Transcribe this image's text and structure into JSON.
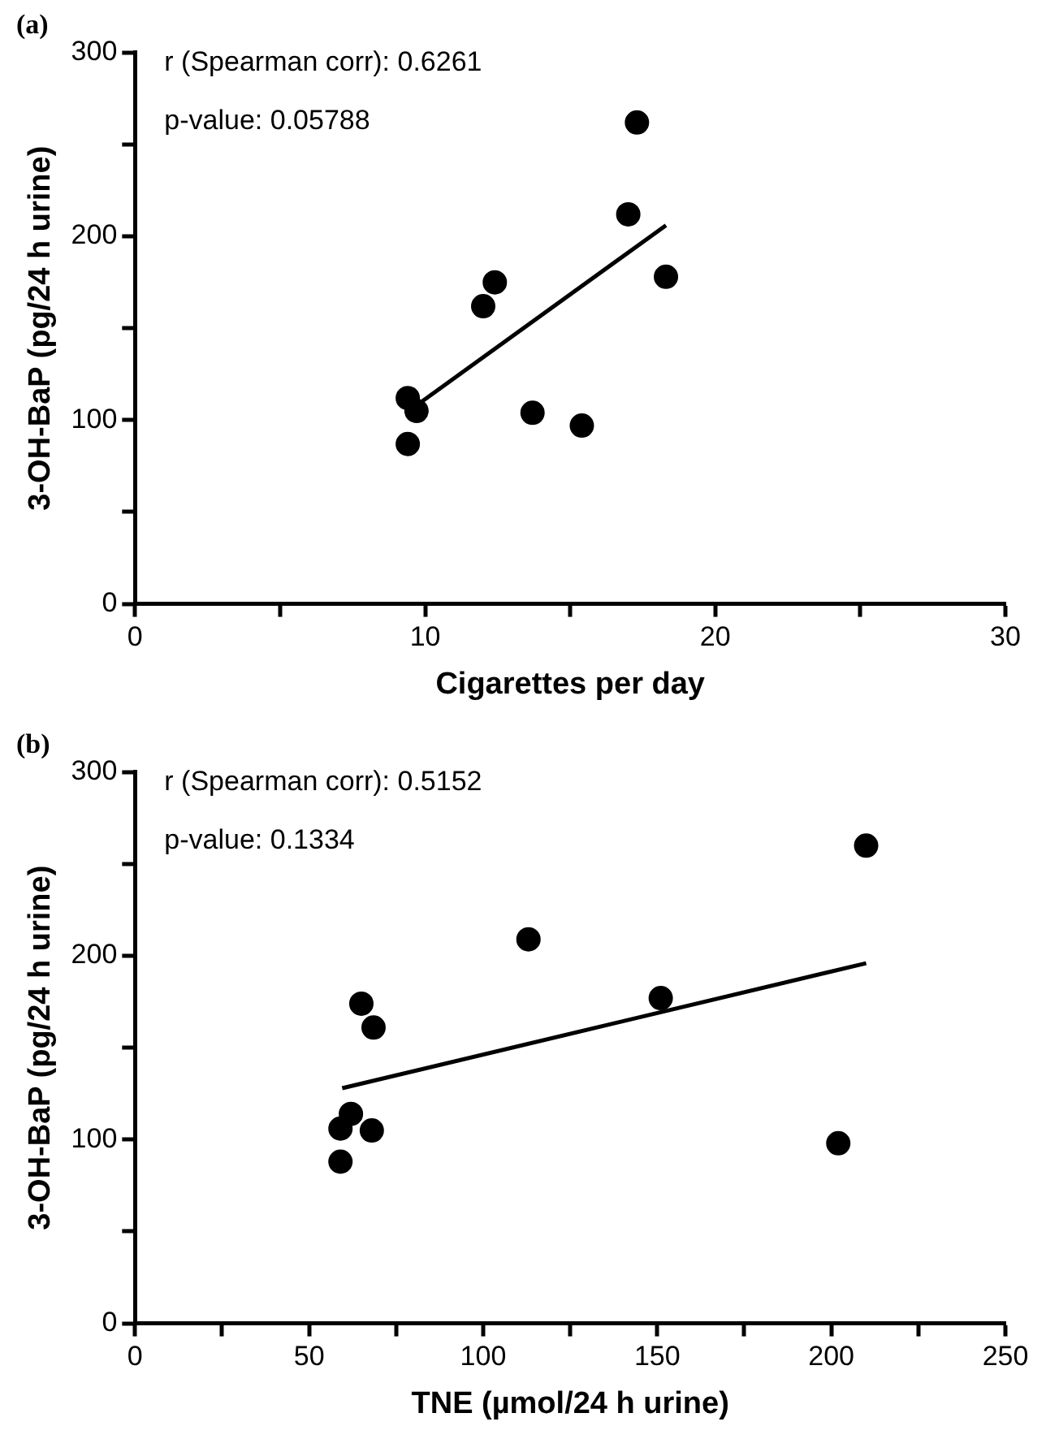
{
  "chart_data": [
    {
      "type": "scatter",
      "title": "(a)",
      "xlabel": "Cigarettes per day",
      "ylabel": "3-OH-BaP (pg/24 h urine)",
      "annotations": [
        "r (Spearman corr): 0.6261",
        "p-value: 0.05788"
      ],
      "series": [
        {
          "type": "scatter",
          "color": "#000000",
          "x": [
            9.4,
            9.7,
            9.4,
            12.0,
            12.4,
            13.7,
            15.4,
            17.0,
            17.3,
            18.3
          ],
          "values": [
            112,
            105,
            87,
            162,
            175,
            104,
            97,
            212,
            262,
            178
          ]
        },
        {
          "type": "line",
          "marker": "none",
          "color": "#000000",
          "x": [
            9.7,
            18.3
          ],
          "values": [
            108,
            206
          ]
        }
      ],
      "xlim": [
        0,
        30
      ],
      "xticks": [
        0,
        {
          "value": 5,
          "label": null
        },
        10,
        {
          "value": 15,
          "label": null
        },
        20,
        {
          "value": 25,
          "label": null
        },
        30
      ],
      "ylim": [
        0,
        300
      ],
      "yticks": [
        0,
        {
          "value": 50,
          "label": null
        },
        100,
        {
          "value": 150,
          "label": null
        },
        200,
        {
          "value": 250,
          "label": null
        },
        300
      ],
      "grid": false,
      "legend": false,
      "marker": "circle"
    },
    {
      "type": "scatter",
      "title": "(b)",
      "xlabel": "TNE (µmol/24 h urine)",
      "ylabel": "3-OH-BaP (pg/24 h urine)",
      "annotations": [
        "r (Spearman corr): 0.5152",
        "p-value: 0.1334"
      ],
      "series": [
        {
          "type": "scatter",
          "color": "#000000",
          "x": [
            210,
            113,
            151,
            202,
            65,
            68.5,
            62,
            59,
            68,
            59
          ],
          "values": [
            260,
            209,
            177,
            98,
            174,
            161,
            114,
            106,
            105,
            88
          ]
        },
        {
          "type": "line",
          "marker": "none",
          "color": "#000000",
          "x": [
            59.5,
            210
          ],
          "values": [
            128,
            196
          ]
        }
      ],
      "xlim": [
        0,
        250
      ],
      "xticks": [
        0,
        {
          "value": 25,
          "label": null
        },
        50,
        {
          "value": 75,
          "label": null
        },
        100,
        {
          "value": 125,
          "label": null
        },
        150,
        {
          "value": 175,
          "label": null
        },
        200,
        {
          "value": 225,
          "label": null
        },
        250
      ],
      "ylim": [
        0,
        300
      ],
      "yticks": [
        0,
        {
          "value": 50,
          "label": null
        },
        100,
        {
          "value": 150,
          "label": null
        },
        200,
        {
          "value": 250,
          "label": null
        },
        300
      ],
      "grid": false,
      "legend": false,
      "marker": "circle"
    }
  ]
}
